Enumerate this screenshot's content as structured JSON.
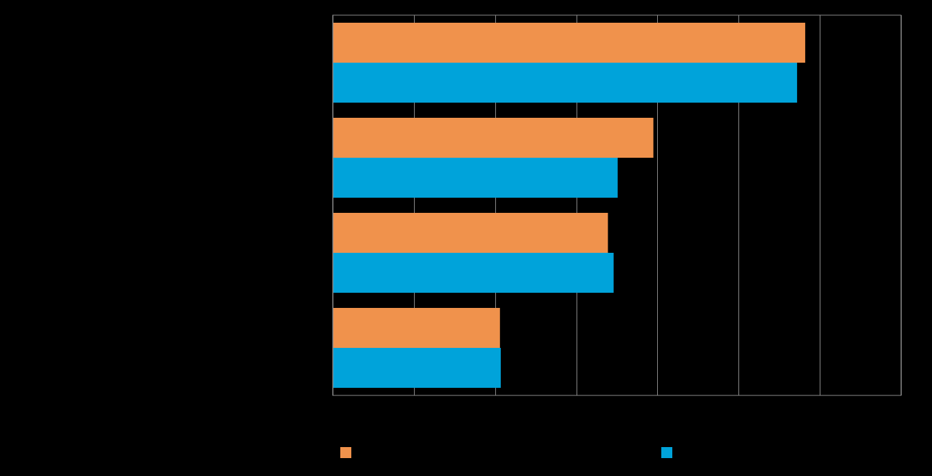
{
  "chart_data": {
    "type": "bar",
    "orientation": "horizontal",
    "categories": [
      "",
      "",
      "",
      ""
    ],
    "series": [
      {
        "values": [
          58.2,
          39.5,
          33.9,
          20.6
        ],
        "color": "#F0924C"
      },
      {
        "values": [
          57.2,
          35.1,
          34.6,
          20.7
        ],
        "color": "#00A3DA"
      }
    ],
    "xlim": [
      0,
      70
    ],
    "x_gridlines": [
      10,
      20,
      30,
      40,
      50,
      60,
      70
    ],
    "grid": true,
    "legend_placement": "bottom",
    "title": "",
    "xlabel": "",
    "ylabel": ""
  },
  "legend": {
    "items": [
      {
        "label": "",
        "color": "#F0924C"
      },
      {
        "label": "",
        "color": "#00A3DA"
      }
    ]
  }
}
